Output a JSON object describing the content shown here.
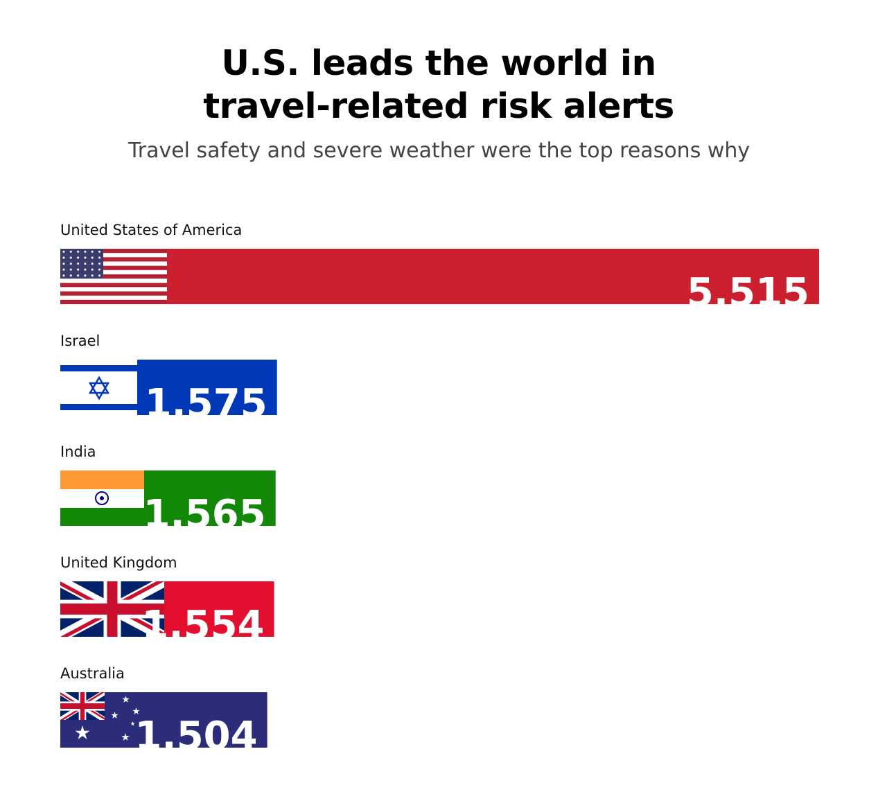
{
  "chart_data": {
    "type": "bar",
    "orientation": "horizontal",
    "title": "U.S. leads the world in travel-related risk alerts",
    "subtitle": "Travel safety and severe weather were the top reasons why",
    "categories": [
      "United States of America",
      "Israel",
      "India",
      "United Kingdom",
      "Australia"
    ],
    "values": [
      5515,
      1575,
      1565,
      1554,
      1504
    ],
    "value_labels": [
      "5,515",
      "1,575",
      "1,565",
      "1,554",
      "1,504"
    ],
    "colors": [
      "#cc1f2f",
      "#0038b8",
      "#138808",
      "#e40f2e",
      "#2b2d7b"
    ]
  }
}
